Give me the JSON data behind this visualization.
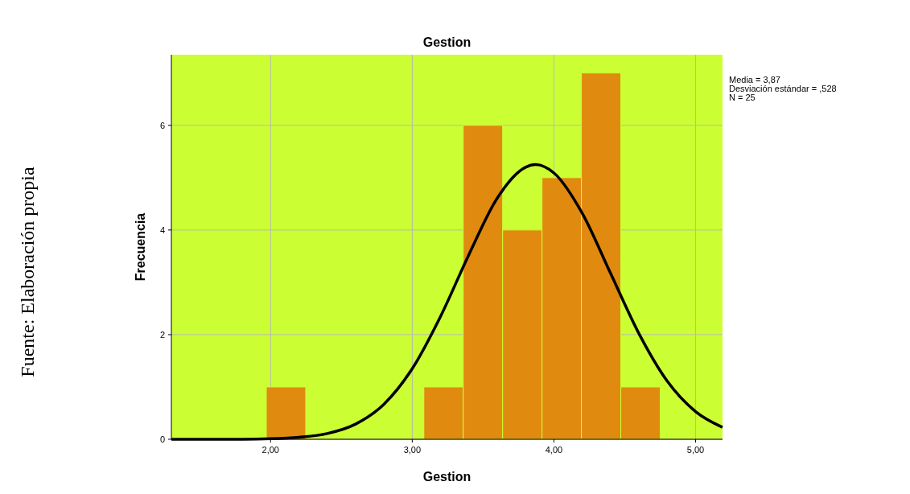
{
  "chart_data": {
    "type": "histogram",
    "title": "Gestion",
    "xlabel": "Gestion",
    "ylabel": "Frecuencia",
    "bins": [
      1.97,
      2.248,
      2.526,
      2.804,
      3.082,
      3.36,
      3.638,
      3.916,
      4.194,
      4.472,
      4.75
    ],
    "values": [
      1,
      0,
      0,
      0,
      1,
      6,
      4,
      5,
      7,
      1
    ],
    "color": "#e08a10",
    "series": [
      {
        "type": "line",
        "color": "#000000",
        "x": [
          1.3,
          1.8,
          2.0,
          2.2,
          2.4,
          2.6,
          2.8,
          3.0,
          3.2,
          3.4,
          3.6,
          3.8,
          3.87,
          4.0,
          4.2,
          4.4,
          4.6,
          4.8,
          5.0,
          5.19
        ],
        "values": [
          0,
          0,
          0.01,
          0.04,
          0.11,
          0.29,
          0.67,
          1.35,
          2.35,
          3.53,
          4.61,
          5.2,
          5.25,
          5.09,
          4.32,
          3.17,
          2.02,
          1.11,
          0.53,
          0.23
        ]
      }
    ],
    "xlim": [
      1.3,
      5.19
    ],
    "xticks": [
      {
        "value": 2,
        "label": "2,00"
      },
      {
        "value": 3,
        "label": "3,00"
      },
      {
        "value": 4,
        "label": "4,00"
      },
      {
        "value": 5,
        "label": "5,00"
      }
    ],
    "ylim": [
      0,
      7.35
    ],
    "yticks": [
      0,
      2,
      4,
      6
    ],
    "grid": true,
    "annotations": [
      "Media = 3,87",
      "Desviación estándar = ,528",
      "N = 25",
      "Fuente: Elaboración propia"
    ]
  }
}
